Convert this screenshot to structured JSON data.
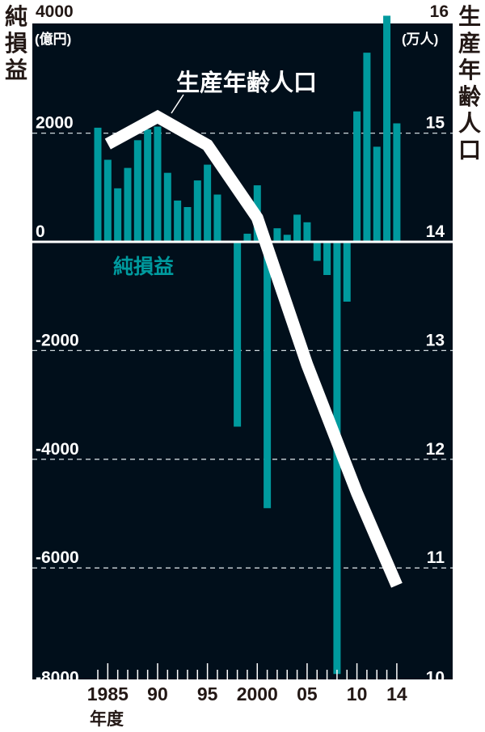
{
  "chart_data": {
    "type": "bar+line",
    "left_axis": {
      "title": "純損益",
      "unit": "(億円)",
      "ylim": [
        -8000,
        4000
      ],
      "ticks": [
        4000,
        2000,
        0,
        -2000,
        -4000,
        -6000,
        -8000
      ],
      "tick_labels": [
        "4000",
        "2000",
        "0",
        "-2000",
        "-4000",
        "-6000",
        "-8000"
      ]
    },
    "right_axis": {
      "title": "生産年齢人口",
      "unit": "(万人)",
      "ylim": [
        10,
        16
      ],
      "ticks": [
        16,
        15,
        14,
        13,
        12,
        11,
        10
      ],
      "tick_labels": [
        "16",
        "15",
        "14",
        "13",
        "12",
        "11",
        "10"
      ]
    },
    "x_axis": {
      "label": "年度",
      "range": [
        1984,
        2014
      ],
      "tick_labels": [
        {
          "year": 1985,
          "label": "1985"
        },
        {
          "year": 1990,
          "label": "90"
        },
        {
          "year": 1995,
          "label": "95"
        },
        {
          "year": 2000,
          "label": "2000"
        },
        {
          "year": 2005,
          "label": "05"
        },
        {
          "year": 2010,
          "label": "10"
        },
        {
          "year": 2014,
          "label": "14"
        }
      ]
    },
    "series": [
      {
        "name": "純損益",
        "type": "bar",
        "axis": "left",
        "color": "#009a9e",
        "x": [
          1984,
          1985,
          1986,
          1987,
          1988,
          1989,
          1990,
          1991,
          1992,
          1993,
          1994,
          1995,
          1996,
          1997,
          1998,
          1999,
          2000,
          2001,
          2002,
          2003,
          2004,
          2005,
          2006,
          2007,
          2008,
          2009,
          2010,
          2011,
          2012,
          2013,
          2014
        ],
        "values": [
          2100,
          1510,
          985,
          1360,
          1870,
          2070,
          2120,
          1270,
          760,
          640,
          1130,
          1420,
          870,
          20,
          -3400,
          150,
          1040,
          -4900,
          250,
          130,
          500,
          360,
          -350,
          -610,
          -7950,
          -1100,
          2400,
          3480,
          1750,
          4160,
          2180
        ]
      },
      {
        "name": "生産年齢人口",
        "type": "line",
        "axis": "right",
        "color": "#ffffff",
        "x": [
          1985,
          1990,
          1995,
          2000,
          2005,
          2010,
          2014
        ],
        "values": [
          14.9,
          15.15,
          14.89,
          14.22,
          12.87,
          11.69,
          10.84
        ]
      }
    ],
    "grid": "dashed at major ticks",
    "colors": {
      "background": "#010f1b",
      "bar": "#009a9e",
      "line": "#ffffff"
    }
  }
}
